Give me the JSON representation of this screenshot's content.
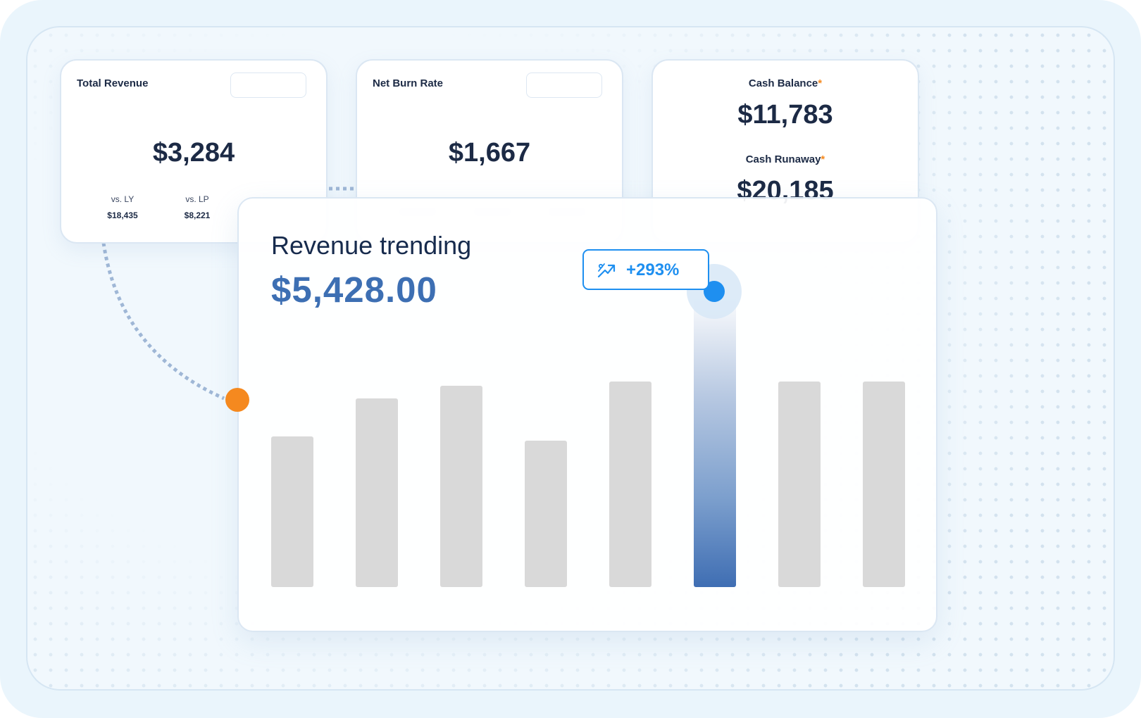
{
  "cards": {
    "total_revenue": {
      "label": "Total Revenue",
      "value": "$3,284",
      "comparisons": [
        {
          "label": "vs. LY",
          "value": "$18,435"
        },
        {
          "label": "vs. LP",
          "value": "$8,221"
        }
      ]
    },
    "net_burn_rate": {
      "label": "Net Burn Rate",
      "value": "$1,667"
    },
    "cash": {
      "balance_label": "Cash Balance",
      "balance_value": "$11,783",
      "runaway_label": "Cash Runaway",
      "runaway_value": "$20,185",
      "required_marker": "*"
    }
  },
  "revenue_trending": {
    "title": "Revenue trending",
    "value": "$5,428.00",
    "badge": {
      "text": "+293%",
      "icon": "trend-up-icon"
    }
  },
  "colors": {
    "accent_blue": "#1e8ff0",
    "value_blue": "#3d6fb3",
    "orange": "#f5891f",
    "bar_gray": "#d9d9d9"
  },
  "chart_data": {
    "type": "bar",
    "categories": [
      "",
      "",
      "",
      "",
      "",
      "",
      "",
      ""
    ],
    "values": [
      214,
      268,
      286,
      208,
      292,
      420,
      292,
      292
    ],
    "highlight_index": 5,
    "ylim": [
      0,
      420
    ],
    "grid": false,
    "title": "",
    "xlabel": "",
    "ylabel": ""
  }
}
